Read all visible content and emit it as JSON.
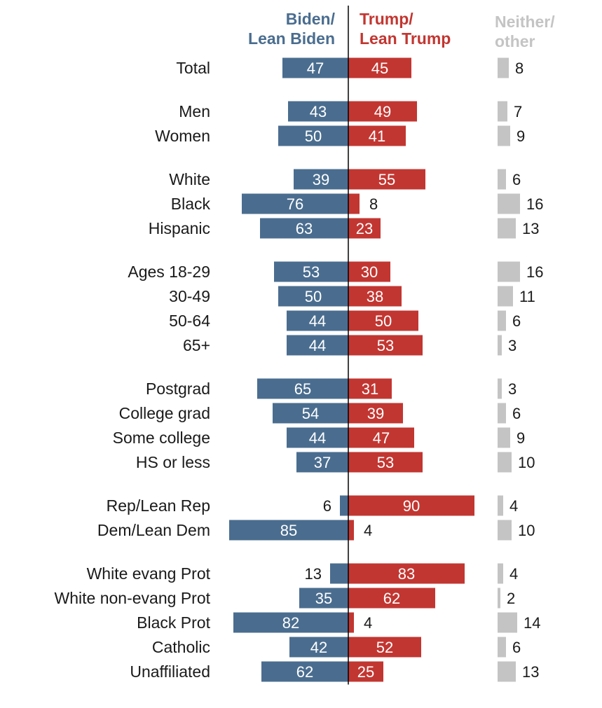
{
  "chart_data": {
    "type": "bar",
    "subtype": "diverging-stacked",
    "headers": {
      "biden": [
        "Biden/",
        "Lean Biden"
      ],
      "trump": [
        "Trump/",
        "Lean Trump"
      ],
      "neither": [
        "Neither/",
        "other"
      ]
    },
    "colors": {
      "biden": "#4a6d8f",
      "trump": "#c23631",
      "neither": "#c4c4c4",
      "axis": "#000000"
    },
    "groups": [
      [
        {
          "label": "Total",
          "biden": 47,
          "trump": 45,
          "neither": 8
        }
      ],
      [
        {
          "label": "Men",
          "biden": 43,
          "trump": 49,
          "neither": 7
        },
        {
          "label": "Women",
          "biden": 50,
          "trump": 41,
          "neither": 9
        }
      ],
      [
        {
          "label": "White",
          "biden": 39,
          "trump": 55,
          "neither": 6
        },
        {
          "label": "Black",
          "biden": 76,
          "trump": 8,
          "neither": 16
        },
        {
          "label": "Hispanic",
          "biden": 63,
          "trump": 23,
          "neither": 13
        }
      ],
      [
        {
          "label": "Ages 18-29",
          "biden": 53,
          "trump": 30,
          "neither": 16
        },
        {
          "label": "30-49",
          "biden": 50,
          "trump": 38,
          "neither": 11
        },
        {
          "label": "50-64",
          "biden": 44,
          "trump": 50,
          "neither": 6
        },
        {
          "label": "65+",
          "biden": 44,
          "trump": 53,
          "neither": 3
        }
      ],
      [
        {
          "label": "Postgrad",
          "biden": 65,
          "trump": 31,
          "neither": 3
        },
        {
          "label": "College grad",
          "biden": 54,
          "trump": 39,
          "neither": 6
        },
        {
          "label": "Some college",
          "biden": 44,
          "trump": 47,
          "neither": 9
        },
        {
          "label": "HS or less",
          "biden": 37,
          "trump": 53,
          "neither": 10
        }
      ],
      [
        {
          "label": "Rep/Lean Rep",
          "biden": 6,
          "trump": 90,
          "neither": 4
        },
        {
          "label": "Dem/Lean Dem",
          "biden": 85,
          "trump": 4,
          "neither": 10
        }
      ],
      [
        {
          "label": "White evang Prot",
          "biden": 13,
          "trump": 83,
          "neither": 4
        },
        {
          "label": "White non-evang Prot",
          "biden": 35,
          "trump": 62,
          "neither": 2
        },
        {
          "label": "Black Prot",
          "biden": 82,
          "trump": 4,
          "neither": 14
        },
        {
          "label": "Catholic",
          "biden": 42,
          "trump": 52,
          "neither": 6
        },
        {
          "label": "Unaffiliated",
          "biden": 62,
          "trump": 25,
          "neither": 13
        }
      ]
    ]
  }
}
